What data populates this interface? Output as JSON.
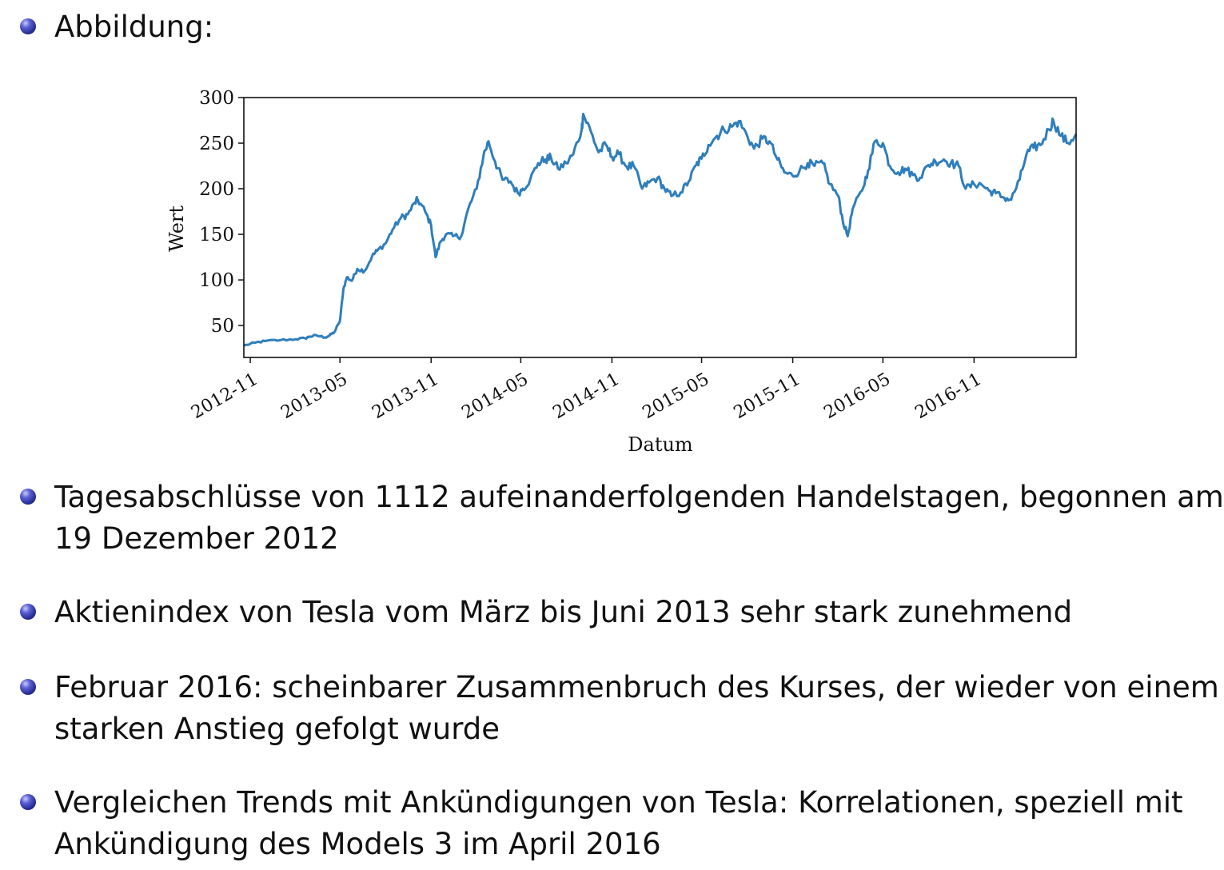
{
  "heading": "Abbildung:",
  "bullets": [
    {
      "line1": "Tagesabschlüsse von 1112 aufeinanderfolgenden Handelstagen, begonnen am",
      "line2": "19 Dezember 2012"
    },
    {
      "line1": "Aktienindex von Tesla vom März bis Juni 2013 sehr stark zunehmend",
      "line2": ""
    },
    {
      "line1": "Februar 2016: scheinbarer Zusammenbruch des Kurses, der wieder von einem",
      "line2": "starken Anstieg gefolgt wurde"
    },
    {
      "line1": "Vergleichen Trends mit Ankündigungen von Tesla: Korrelationen, speziell mit",
      "line2": "Ankündigung des Models 3 im April 2016"
    }
  ],
  "chart_data": {
    "type": "line",
    "title": "",
    "xlabel": "Datum",
    "ylabel": "Wert",
    "xlim": [
      "2012-10-19",
      "2017-05-26"
    ],
    "ylim": [
      15,
      300
    ],
    "yticks": [
      50,
      100,
      150,
      200,
      250,
      300
    ],
    "xticks": [
      "2012-11",
      "2013-05",
      "2013-11",
      "2014-05",
      "2014-11",
      "2015-05",
      "2015-11",
      "2016-05",
      "2016-11"
    ],
    "grid": false,
    "line_color": "#2e7ebc",
    "series": [
      {
        "name": "",
        "x": [
          "2012-10-19",
          "2012-11-10",
          "2012-12-01",
          "2013-01-01",
          "2013-02-01",
          "2013-02-20",
          "2013-03-01",
          "2013-03-15",
          "2013-04-01",
          "2013-04-10",
          "2013-04-20",
          "2013-05-01",
          "2013-05-08",
          "2013-05-15",
          "2013-05-25",
          "2013-06-05",
          "2013-06-20",
          "2013-07-05",
          "2013-07-15",
          "2013-08-01",
          "2013-08-15",
          "2013-09-01",
          "2013-09-15",
          "2013-09-30",
          "2013-10-05",
          "2013-10-20",
          "2013-11-01",
          "2013-11-10",
          "2013-11-20",
          "2013-12-01",
          "2013-12-15",
          "2014-01-01",
          "2014-01-15",
          "2014-02-01",
          "2014-02-15",
          "2014-02-25",
          "2014-03-10",
          "2014-03-25",
          "2014-04-10",
          "2014-04-25",
          "2014-05-05",
          "2014-05-20",
          "2014-06-05",
          "2014-06-20",
          "2014-07-01",
          "2014-07-15",
          "2014-08-01",
          "2014-08-15",
          "2014-09-01",
          "2014-09-04",
          "2014-09-20",
          "2014-10-05",
          "2014-10-20",
          "2014-11-01",
          "2014-11-15",
          "2014-12-01",
          "2014-12-15",
          "2015-01-01",
          "2015-01-15",
          "2015-02-01",
          "2015-02-15",
          "2015-03-01",
          "2015-03-20",
          "2015-04-05",
          "2015-04-20",
          "2015-05-01",
          "2015-05-15",
          "2015-06-01",
          "2015-06-15",
          "2015-07-01",
          "2015-07-15",
          "2015-08-01",
          "2015-08-15",
          "2015-09-01",
          "2015-09-15",
          "2015-10-01",
          "2015-10-15",
          "2015-11-01",
          "2015-11-15",
          "2015-12-01",
          "2015-12-15",
          "2016-01-01",
          "2016-01-15",
          "2016-02-01",
          "2016-02-10",
          "2016-02-20",
          "2016-03-01",
          "2016-03-20",
          "2016-04-01",
          "2016-04-15",
          "2016-05-01",
          "2016-05-15",
          "2016-06-01",
          "2016-06-15",
          "2016-07-01",
          "2016-07-15",
          "2016-08-01",
          "2016-08-15",
          "2016-09-01",
          "2016-09-15",
          "2016-10-01",
          "2016-10-15",
          "2016-11-01",
          "2016-11-15",
          "2016-12-01",
          "2016-12-15",
          "2017-01-01",
          "2017-01-15",
          "2017-02-01",
          "2017-02-15",
          "2017-03-01",
          "2017-03-15",
          "2017-04-01",
          "2017-04-10",
          "2017-04-25",
          "2017-05-10",
          "2017-05-26"
        ],
        "values": [
          28,
          31,
          33,
          34,
          35,
          36,
          38,
          39,
          37,
          39,
          43,
          55,
          90,
          103,
          99,
          112,
          110,
          126,
          132,
          140,
          155,
          168,
          172,
          185,
          188,
          175,
          160,
          125,
          142,
          150,
          148,
          148,
          178,
          200,
          237,
          252,
          230,
          210,
          208,
          195,
          200,
          210,
          228,
          232,
          234,
          222,
          228,
          238,
          265,
          282,
          262,
          240,
          248,
          235,
          238,
          224,
          225,
          200,
          207,
          212,
          200,
          192,
          196,
          208,
          226,
          233,
          248,
          258,
          265,
          268,
          274,
          258,
          244,
          255,
          252,
          232,
          218,
          214,
          220,
          228,
          225,
          228,
          205,
          192,
          165,
          148,
          178,
          198,
          220,
          252,
          250,
          225,
          218,
          222,
          215,
          212,
          226,
          230,
          232,
          228,
          225,
          200,
          205,
          205,
          198,
          195,
          190,
          188,
          210,
          238,
          245,
          248,
          265,
          275,
          258,
          250,
          260
        ]
      }
    ]
  }
}
